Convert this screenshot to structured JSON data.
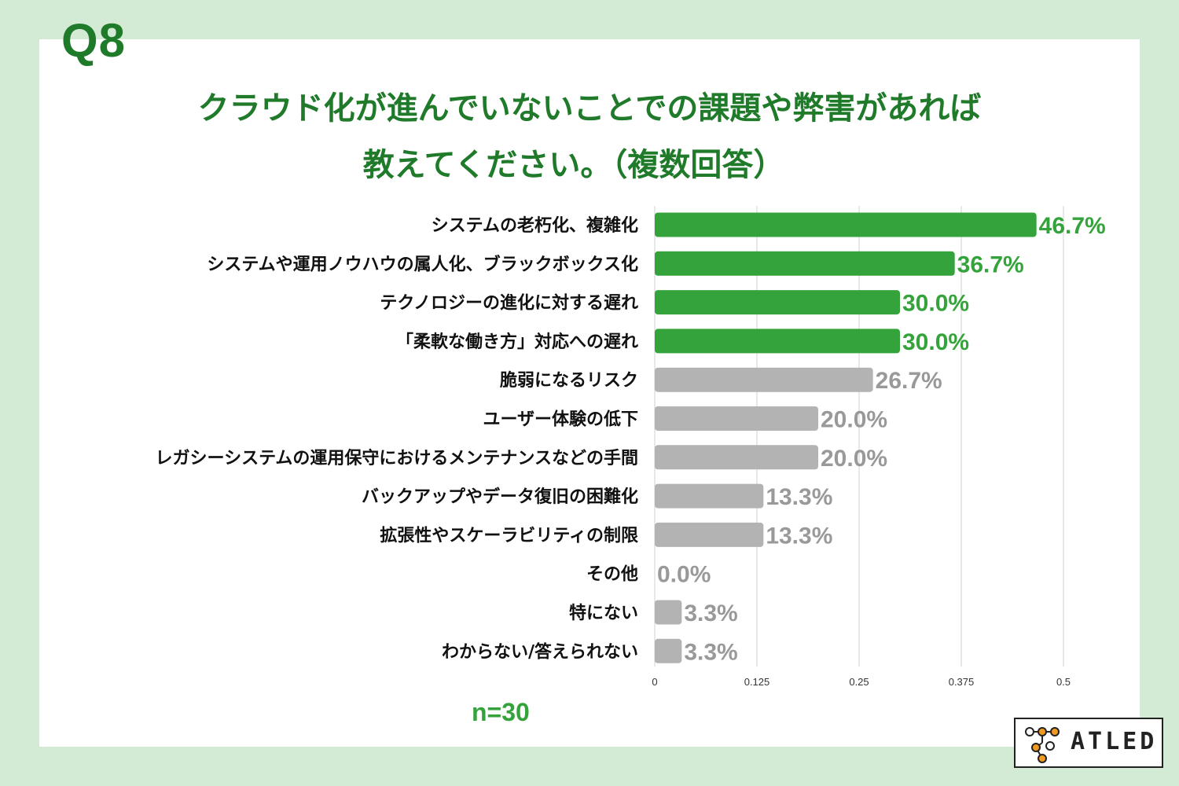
{
  "question_label": "Q8",
  "title_line1": "クラウド化が進んでいないことでの課題や弊害があれば",
  "title_line2": "教えてください。（複数回答）",
  "sample_size": "n=30",
  "logo_text": "ATLED",
  "colors": {
    "background": "#d3ead4",
    "title": "#1f7a2a",
    "bar_highlight": "#35a33b",
    "bar_default": "#b3b3b3",
    "value_highlight": "#35a33b",
    "value_default": "#999999"
  },
  "chart_data": {
    "type": "bar",
    "orientation": "horizontal",
    "categories": [
      "システムの老朽化、複雑化",
      "システムや運用ノウハウの属人化、ブラックボックス化",
      "テクノロジーの進化に対する遅れ",
      "「柔軟な働き方」対応への遅れ",
      "脆弱になるリスク",
      "ユーザー体験の低下",
      "レガシーシステムの運用保守におけるメンテナンスなどの手間",
      "バックアップやデータ復旧の困難化",
      "拡張性やスケーラビリティの制限",
      "その他",
      "特にない",
      "わからない/答えられない"
    ],
    "values": [
      0.467,
      0.367,
      0.3,
      0.3,
      0.267,
      0.2,
      0.2,
      0.133,
      0.133,
      0.0,
      0.033,
      0.033
    ],
    "value_labels": [
      "46.7%",
      "36.7%",
      "30.0%",
      "30.0%",
      "26.7%",
      "20.0%",
      "20.0%",
      "13.3%",
      "13.3%",
      "0.0%",
      "3.3%",
      "3.3%"
    ],
    "highlighted": [
      true,
      true,
      true,
      true,
      false,
      false,
      false,
      false,
      false,
      false,
      false,
      false
    ],
    "x_ticks": [
      "0",
      "0.125",
      "0.25",
      "0.375",
      "0.5"
    ],
    "xlim": [
      0,
      0.5
    ],
    "grid": true
  }
}
